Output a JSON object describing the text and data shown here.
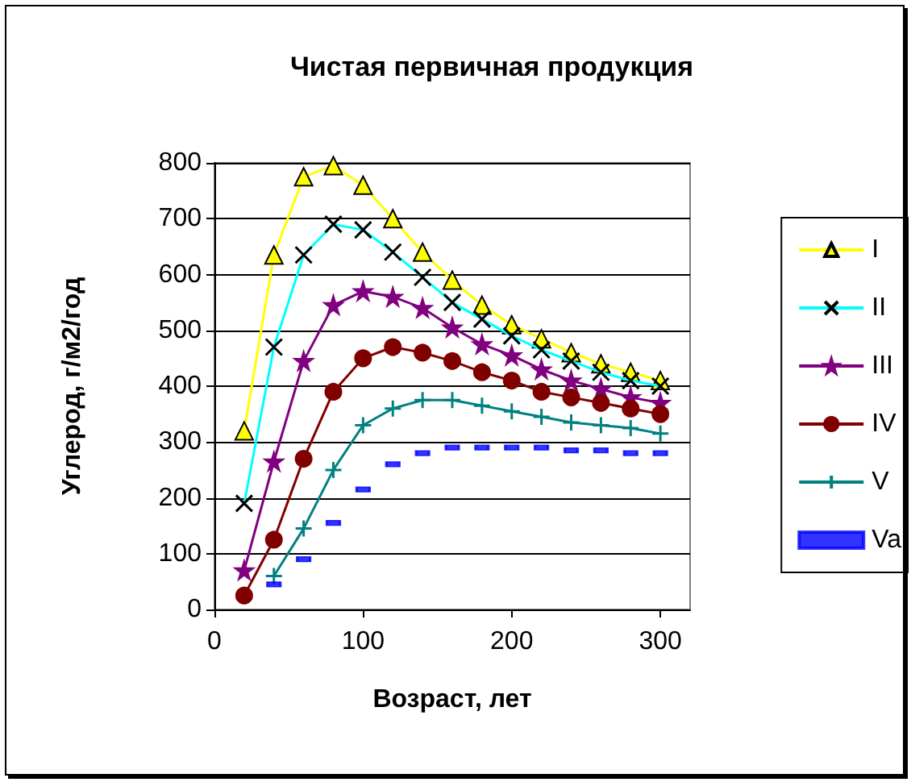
{
  "chart_data": {
    "type": "line",
    "title": "Чистая первичная продукция",
    "xlabel": "Возраст, лет",
    "ylabel": "Углерод, г/м2/год",
    "xlim": [
      0,
      320
    ],
    "xticks": [
      0,
      100,
      200,
      300
    ],
    "ylim": [
      0,
      800
    ],
    "yticks": [
      0,
      100,
      200,
      300,
      400,
      500,
      600,
      700,
      800
    ],
    "grid": "y",
    "legend": "right",
    "series": [
      {
        "name": "I",
        "color": "#ffff00",
        "marker": "triangle",
        "x": [
          20,
          40,
          60,
          80,
          100,
          120,
          140,
          160,
          180,
          200,
          220,
          240,
          260,
          280,
          300
        ],
        "values": [
          320,
          635,
          775,
          795,
          760,
          700,
          640,
          590,
          545,
          510,
          485,
          460,
          440,
          425,
          410
        ]
      },
      {
        "name": "II",
        "color": "#00ffff",
        "marker": "cross",
        "x": [
          20,
          40,
          60,
          80,
          100,
          120,
          140,
          160,
          180,
          200,
          220,
          240,
          260,
          280,
          300
        ],
        "values": [
          190,
          470,
          635,
          690,
          680,
          640,
          595,
          550,
          520,
          490,
          465,
          445,
          425,
          410,
          400
        ]
      },
      {
        "name": "III",
        "color": "#800080",
        "marker": "star",
        "x": [
          20,
          40,
          60,
          80,
          100,
          120,
          140,
          160,
          180,
          200,
          220,
          240,
          260,
          280,
          300
        ],
        "values": [
          70,
          265,
          445,
          545,
          570,
          560,
          540,
          505,
          475,
          455,
          430,
          410,
          395,
          380,
          370
        ]
      },
      {
        "name": "IV",
        "color": "#800000",
        "marker": "circle",
        "x": [
          20,
          40,
          60,
          80,
          100,
          120,
          140,
          160,
          180,
          200,
          220,
          240,
          260,
          280,
          300
        ],
        "values": [
          25,
          125,
          270,
          390,
          450,
          470,
          460,
          445,
          425,
          410,
          390,
          380,
          370,
          360,
          350
        ]
      },
      {
        "name": "V",
        "color": "#008080",
        "marker": "cross",
        "x": [
          40,
          60,
          80,
          100,
          120,
          140,
          160,
          180,
          200,
          220,
          240,
          260,
          280,
          300
        ],
        "values": [
          60,
          145,
          250,
          330,
          360,
          375,
          375,
          365,
          355,
          345,
          335,
          330,
          325,
          315
        ]
      },
      {
        "name": "Va",
        "type": "scatter",
        "color": "#0000ff",
        "marker": "square",
        "x": [
          40,
          60,
          80,
          100,
          120,
          140,
          160,
          180,
          200,
          220,
          240,
          260,
          280,
          300
        ],
        "values": [
          45,
          90,
          155,
          215,
          260,
          280,
          290,
          290,
          290,
          290,
          285,
          285,
          280,
          280
        ]
      }
    ]
  }
}
